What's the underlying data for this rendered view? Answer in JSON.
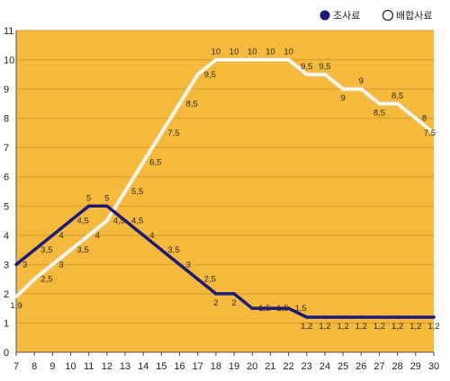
{
  "chart_data": {
    "type": "line",
    "title": "",
    "xlabel": "",
    "ylabel": "",
    "x": [
      7,
      8,
      9,
      10,
      11,
      12,
      13,
      14,
      15,
      16,
      17,
      18,
      19,
      20,
      21,
      22,
      23,
      24,
      25,
      26,
      27,
      28,
      29,
      30
    ],
    "xlim": [
      7,
      30
    ],
    "ylim": [
      0,
      11
    ],
    "grid": true,
    "legend_position": "top-right",
    "colors": {
      "plot_background": "#f5b93b",
      "grid": "#d99a2a",
      "series1": "#1b1a7c",
      "series2": "#fffbe8"
    },
    "series": [
      {
        "name": "조사료",
        "color": "#1b1a7c",
        "marker_style": "filled",
        "values": [
          3,
          3.5,
          4,
          4.5,
          5,
          5,
          4.5,
          4,
          3.5,
          3,
          2.5,
          2,
          2,
          1.5,
          1.5,
          1.5,
          1.2,
          1.2,
          1.2,
          1.2,
          1.2,
          1.2,
          1.2,
          1.2
        ],
        "labels": [
          "3",
          "3,5",
          "4",
          "4,5",
          "5",
          "5",
          "4,5",
          "4",
          "3,5",
          "3",
          "2,5",
          "2",
          "2",
          "1,5",
          "1,5",
          "1,5",
          "1,2",
          "1,2",
          "1,2",
          "1,2",
          "1,2",
          "1,2",
          "1,2",
          "1,2"
        ]
      },
      {
        "name": "배합사료",
        "color": "#fffbe8",
        "marker_style": "hollow",
        "values": [
          1.9,
          2.5,
          3,
          3.5,
          4,
          4.5,
          5.5,
          6.5,
          7.5,
          8.5,
          9.5,
          10,
          10,
          10,
          10,
          10,
          9.5,
          9.5,
          9,
          9,
          8.5,
          8.5,
          8,
          7.5
        ],
        "labels": [
          "1,9",
          "2,5",
          "3",
          "3,5",
          "4",
          "4,5",
          "5,5",
          "6,5",
          "7,5",
          "8,5",
          "9,5",
          "10",
          "10",
          "10",
          "10",
          "10",
          "9,5",
          "9,5",
          "9",
          "9",
          "8,5",
          "8,5",
          "8",
          "7,5"
        ]
      }
    ]
  }
}
